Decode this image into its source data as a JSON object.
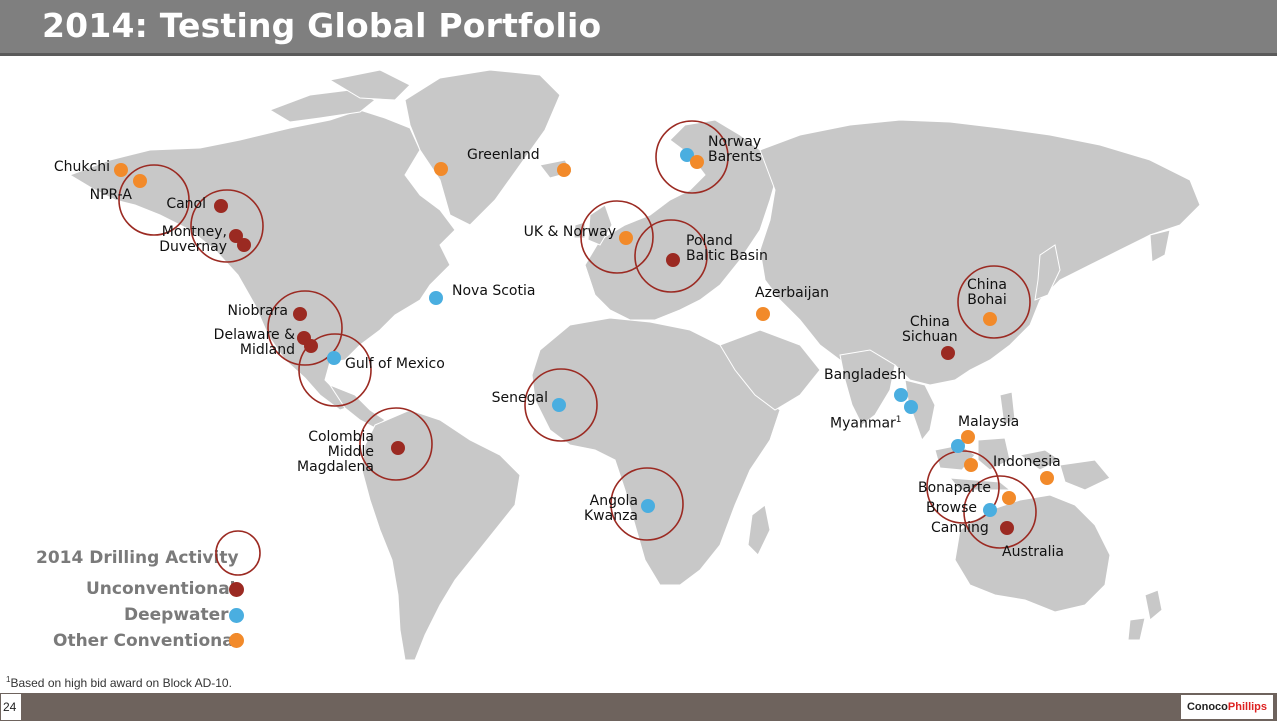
{
  "slide": {
    "title": "2014: Testing Global Portfolio",
    "page_number": "24",
    "footnote_marker": "1",
    "footnote_text": "Based on high bid award on Block AD-10.",
    "logo_text_a": "Conoco",
    "logo_text_b": "Phillips"
  },
  "colors": {
    "unconventional": "#9b2a22",
    "deepwater": "#4aaee0",
    "other_conventional": "#f28a2a",
    "activity_circle": "#9b2a22",
    "land": "#c8c8c8"
  },
  "legend": {
    "activity": "2014 Drilling Activity",
    "unconventional": "Unconventional",
    "deepwater": "Deepwater",
    "other_conventional": "Other Conventional"
  },
  "labels": {
    "chukchi": "Chukchi",
    "npra": "NPR-A",
    "canol": "Canol",
    "montney": "Montney,\nDuvernay",
    "niobrara": "Niobrara",
    "delaware": "Delaware &\nMidland",
    "gulf": "Gulf of Mexico",
    "nova_scotia": "Nova Scotia",
    "greenland": "Greenland",
    "colombia": "Colombia\nMiddle\nMagdalena",
    "senegal": "Senegal",
    "angola": "Angola\nKwanza",
    "uk_norway": "UK & Norway",
    "norway_barents": "Norway\nBarents",
    "poland": "Poland\nBaltic Basin",
    "azerbaijan": "Azerbaijan",
    "china_bohai": "China\nBohai",
    "china_sichuan": "China\nSichuan",
    "bangladesh": "Bangladesh",
    "myanmar": "Myanmar",
    "myanmar_sup": "1",
    "malaysia": "Malaysia",
    "indonesia": "Indonesia",
    "bonaparte": "Bonaparte",
    "browse": "Browse",
    "canning": "Canning",
    "australia": "Australia"
  },
  "sites": [
    {
      "name": "Chukchi",
      "type": "other_conventional"
    },
    {
      "name": "NPR-A",
      "type": "other_conventional"
    },
    {
      "name": "Canol",
      "type": "unconventional"
    },
    {
      "name": "Montney, Duvernay",
      "type": "unconventional"
    },
    {
      "name": "Niobrara",
      "type": "unconventional"
    },
    {
      "name": "Delaware & Midland",
      "type": "unconventional"
    },
    {
      "name": "Gulf of Mexico",
      "type": "deepwater"
    },
    {
      "name": "Nova Scotia",
      "type": "deepwater"
    },
    {
      "name": "Greenland",
      "type": "other_conventional"
    },
    {
      "name": "Colombia Middle Magdalena",
      "type": "unconventional"
    },
    {
      "name": "Senegal",
      "type": "deepwater"
    },
    {
      "name": "Angola Kwanza",
      "type": "deepwater"
    },
    {
      "name": "UK & Norway",
      "type": "other_conventional"
    },
    {
      "name": "Norway Barents",
      "type": "deepwater"
    },
    {
      "name": "Poland Baltic Basin",
      "type": "unconventional"
    },
    {
      "name": "Azerbaijan",
      "type": "other_conventional"
    },
    {
      "name": "China Bohai",
      "type": "other_conventional"
    },
    {
      "name": "China Sichuan",
      "type": "unconventional"
    },
    {
      "name": "Bangladesh",
      "type": "deepwater"
    },
    {
      "name": "Myanmar",
      "type": "deepwater"
    },
    {
      "name": "Malaysia",
      "type": "other_conventional"
    },
    {
      "name": "Indonesia",
      "type": "other_conventional"
    },
    {
      "name": "Bonaparte",
      "type": "other_conventional"
    },
    {
      "name": "Browse",
      "type": "deepwater"
    },
    {
      "name": "Canning",
      "type": "unconventional"
    }
  ]
}
